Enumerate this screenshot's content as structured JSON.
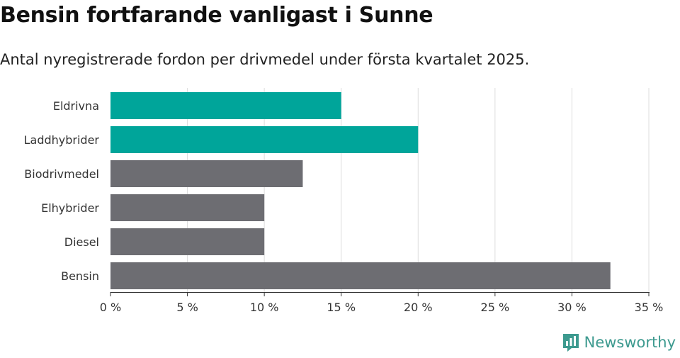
{
  "title": "Bensin fortfarande vanligast i Sunne",
  "subtitle": "Antal nyregistrerade fordon per drivmedel under första kvartalet 2025.",
  "brand": {
    "name": "Newsworthy",
    "color": "#3d9a8f",
    "icon": "bar-chart-logo-icon"
  },
  "chart_data": {
    "type": "bar",
    "orientation": "horizontal",
    "categories": [
      "Eldrivna",
      "Laddhybrider",
      "Biodrivmedel",
      "Elhybrider",
      "Diesel",
      "Bensin"
    ],
    "values": [
      15,
      20,
      12.5,
      10,
      10,
      32.5
    ],
    "colors": [
      "#00a59a",
      "#00a59a",
      "#6d6d72",
      "#6d6d72",
      "#6d6d72",
      "#6d6d72"
    ],
    "xlim": [
      0,
      35
    ],
    "xticks": [
      0,
      5,
      10,
      15,
      20,
      25,
      30,
      35
    ],
    "tick_labels": [
      "0 %",
      "5 %",
      "10 %",
      "15 %",
      "20 %",
      "25 %",
      "30 %",
      "35 %"
    ],
    "grid": "vertical",
    "legend": "none"
  }
}
